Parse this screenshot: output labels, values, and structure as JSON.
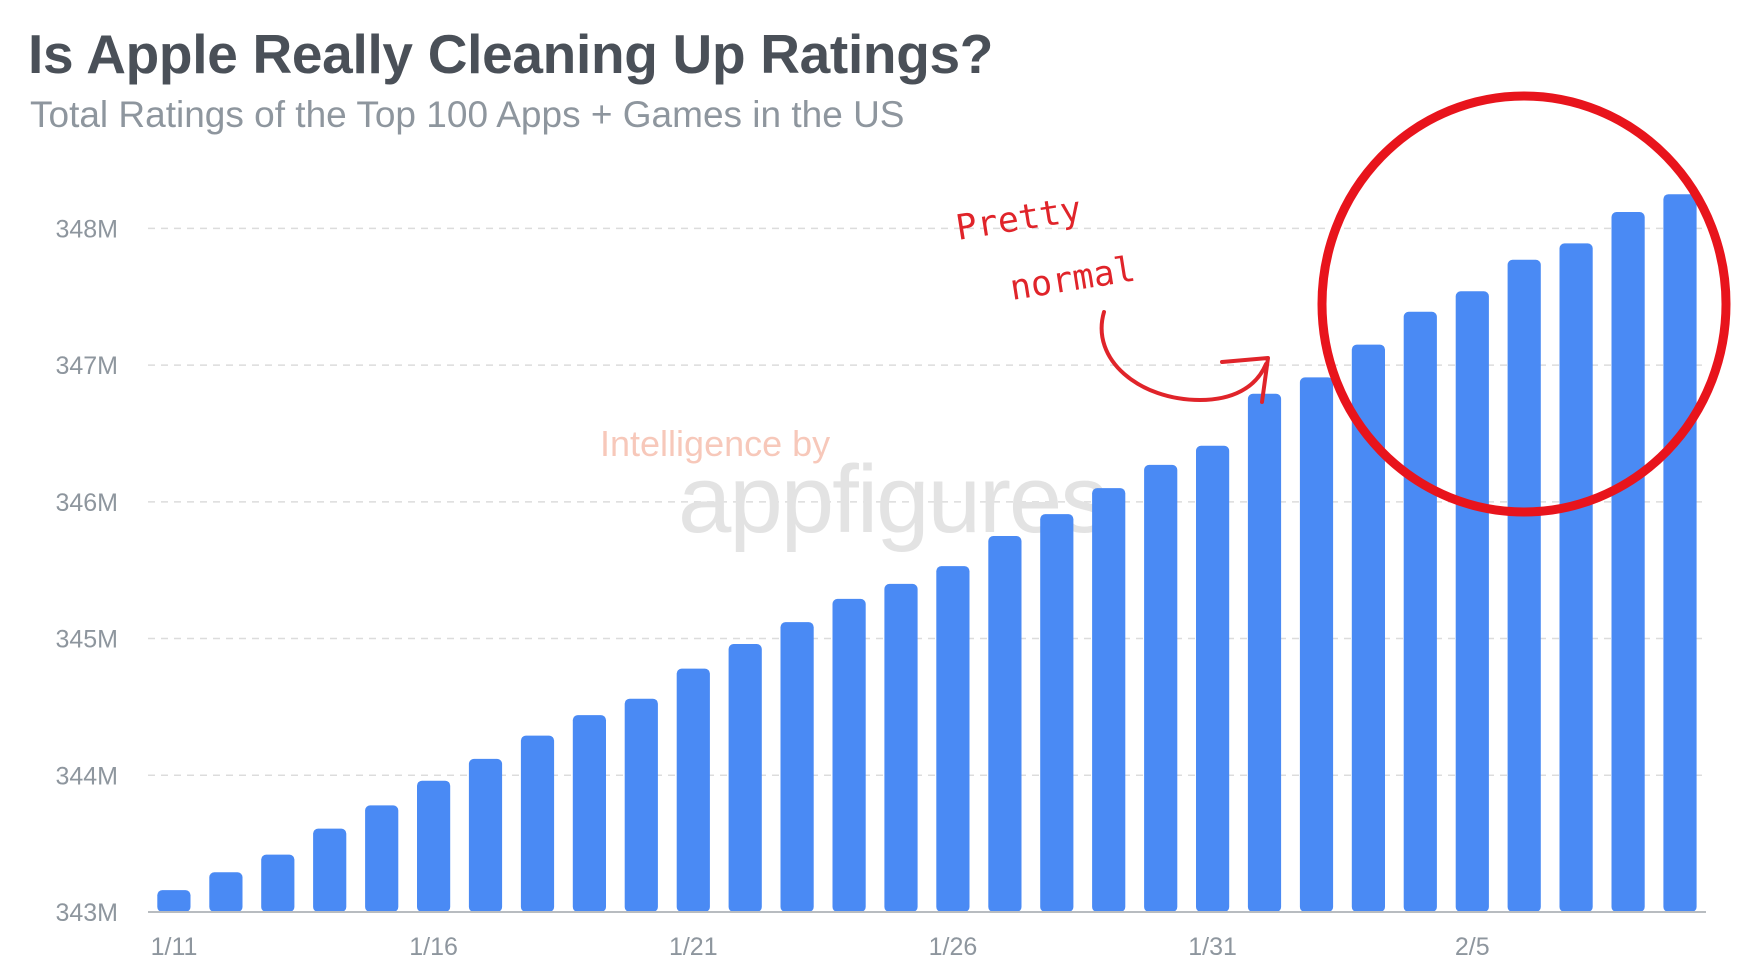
{
  "header": {
    "title": "Is Apple Really Cleaning Up Ratings?",
    "subtitle": "Total Ratings of the Top 100 Apps + Games in the US"
  },
  "watermark": {
    "line1": "Intelligence by",
    "line2": "appfigures"
  },
  "annotation": {
    "line1": "Pretty",
    "line2": "normal"
  },
  "colors": {
    "bar": "#4a8af4",
    "annotation": "#e0242a",
    "grid": "#dcdcdc"
  },
  "chart_data": {
    "type": "bar",
    "title": "Is Apple Really Cleaning Up Ratings?",
    "subtitle": "Total Ratings of the Top 100 Apps + Games in the US",
    "xlabel": "",
    "ylabel": "",
    "ylim": [
      343000000,
      348500000
    ],
    "yticks": [
      343000000,
      344000000,
      345000000,
      346000000,
      347000000,
      348000000
    ],
    "ytick_labels": [
      "343M",
      "344M",
      "345M",
      "346M",
      "347M",
      "348M"
    ],
    "x_tick_labels": [
      {
        "index": 0,
        "label": "1/11"
      },
      {
        "index": 5,
        "label": "1/16"
      },
      {
        "index": 10,
        "label": "1/21"
      },
      {
        "index": 15,
        "label": "1/26"
      },
      {
        "index": 20,
        "label": "1/31"
      },
      {
        "index": 25,
        "label": "2/5"
      }
    ],
    "grid": true,
    "categories": [
      "1/11",
      "1/12",
      "1/13",
      "1/14",
      "1/15",
      "1/16",
      "1/17",
      "1/18",
      "1/19",
      "1/20",
      "1/21",
      "1/22",
      "1/23",
      "1/24",
      "1/25",
      "1/26",
      "1/27",
      "1/28",
      "1/29",
      "1/30",
      "1/31",
      "2/1",
      "2/2",
      "2/3",
      "2/4",
      "2/5",
      "2/6",
      "2/7",
      "2/8",
      "2/9"
    ],
    "values": [
      343160000,
      343290000,
      343420000,
      343610000,
      343780000,
      343960000,
      344120000,
      344290000,
      344440000,
      344560000,
      344780000,
      344960000,
      345120000,
      345290000,
      345400000,
      345530000,
      345750000,
      345910000,
      346100000,
      346270000,
      346410000,
      346790000,
      346910000,
      347150000,
      347390000,
      347540000,
      347770000,
      347890000,
      348120000,
      348250000
    ]
  }
}
